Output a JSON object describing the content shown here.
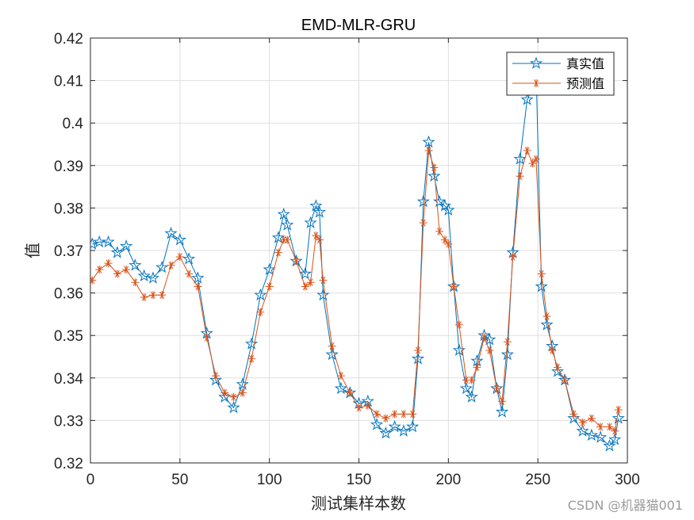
{
  "chart_data": {
    "type": "line",
    "title": "EMD-MLR-GRU",
    "xlabel": "测试集样本数",
    "ylabel": "值",
    "xlim": [
      0,
      300
    ],
    "ylim": [
      0.32,
      0.42
    ],
    "xticks": [
      "0",
      "50",
      "100",
      "150",
      "200",
      "250",
      "300"
    ],
    "yticks": [
      "0.32",
      "0.33",
      "0.34",
      "0.35",
      "0.36",
      "0.37",
      "0.38",
      "0.39",
      "0.4",
      "0.41",
      "0.42"
    ],
    "grid": true,
    "legend_position": "top-right",
    "series": [
      {
        "name": "真实值",
        "color": "#0072BD",
        "marker": "pentagram",
        "x": [
          1,
          5,
          10,
          15,
          20,
          25,
          30,
          35,
          40,
          45,
          50,
          55,
          60,
          65,
          70,
          75,
          80,
          85,
          90,
          95,
          100,
          105,
          108,
          110,
          115,
          120,
          123,
          126,
          128,
          130,
          135,
          140,
          145,
          150,
          155,
          160,
          165,
          170,
          175,
          180,
          183,
          186,
          189,
          192,
          195,
          198,
          200,
          203,
          206,
          210,
          213,
          216,
          220,
          223,
          227,
          230,
          233,
          236,
          240,
          244,
          247,
          249,
          252,
          255,
          258,
          261,
          265,
          270,
          275,
          280,
          285,
          290,
          293,
          295
        ],
        "y": [
          0.3715,
          0.372,
          0.372,
          0.3695,
          0.371,
          0.3665,
          0.364,
          0.3635,
          0.366,
          0.374,
          0.3725,
          0.368,
          0.3635,
          0.3505,
          0.3395,
          0.3355,
          0.333,
          0.3385,
          0.348,
          0.3595,
          0.3655,
          0.373,
          0.3785,
          0.376,
          0.3675,
          0.3645,
          0.3765,
          0.3805,
          0.379,
          0.3595,
          0.3455,
          0.3375,
          0.3365,
          0.334,
          0.3345,
          0.329,
          0.327,
          0.3285,
          0.3275,
          0.3285,
          0.3445,
          0.3815,
          0.3955,
          0.3875,
          0.3815,
          0.3805,
          0.3795,
          0.3615,
          0.3465,
          0.3375,
          0.3355,
          0.344,
          0.35,
          0.349,
          0.3375,
          0.332,
          0.3455,
          0.3695,
          0.3915,
          0.4055,
          0.408,
          0.4125,
          0.3615,
          0.3525,
          0.3475,
          0.3415,
          0.3395,
          0.3305,
          0.3275,
          0.3265,
          0.326,
          0.324,
          0.3255,
          0.3305
        ]
      },
      {
        "name": "预测值",
        "color": "#D95319",
        "marker": "asterisk",
        "x": [
          1,
          5,
          10,
          15,
          20,
          25,
          30,
          35,
          40,
          45,
          50,
          55,
          60,
          65,
          70,
          75,
          80,
          85,
          90,
          95,
          100,
          105,
          108,
          110,
          115,
          120,
          123,
          126,
          128,
          130,
          135,
          140,
          145,
          150,
          155,
          160,
          165,
          170,
          175,
          180,
          183,
          186,
          189,
          192,
          195,
          198,
          200,
          203,
          206,
          210,
          213,
          216,
          220,
          223,
          227,
          230,
          233,
          236,
          240,
          244,
          247,
          249,
          252,
          255,
          258,
          261,
          265,
          270,
          275,
          280,
          285,
          290,
          293,
          295
        ],
        "y": [
          0.363,
          0.3655,
          0.367,
          0.3645,
          0.3655,
          0.3625,
          0.359,
          0.3595,
          0.3595,
          0.3665,
          0.3685,
          0.3645,
          0.3615,
          0.3495,
          0.3405,
          0.3365,
          0.3355,
          0.3365,
          0.3445,
          0.3555,
          0.3615,
          0.3695,
          0.3725,
          0.3725,
          0.3675,
          0.3615,
          0.3625,
          0.3735,
          0.3725,
          0.363,
          0.3475,
          0.3405,
          0.3365,
          0.333,
          0.3335,
          0.3315,
          0.3305,
          0.3315,
          0.3315,
          0.3315,
          0.3465,
          0.3765,
          0.3935,
          0.3895,
          0.3745,
          0.3725,
          0.3715,
          0.3615,
          0.3525,
          0.3395,
          0.3395,
          0.3425,
          0.3495,
          0.3465,
          0.3375,
          0.3345,
          0.3485,
          0.3685,
          0.3875,
          0.3935,
          0.3905,
          0.3915,
          0.3645,
          0.3545,
          0.3465,
          0.3425,
          0.3395,
          0.3315,
          0.3295,
          0.3305,
          0.3285,
          0.3285,
          0.3275,
          0.3325
        ]
      }
    ]
  },
  "watermark": "CSDN @机器猫001"
}
